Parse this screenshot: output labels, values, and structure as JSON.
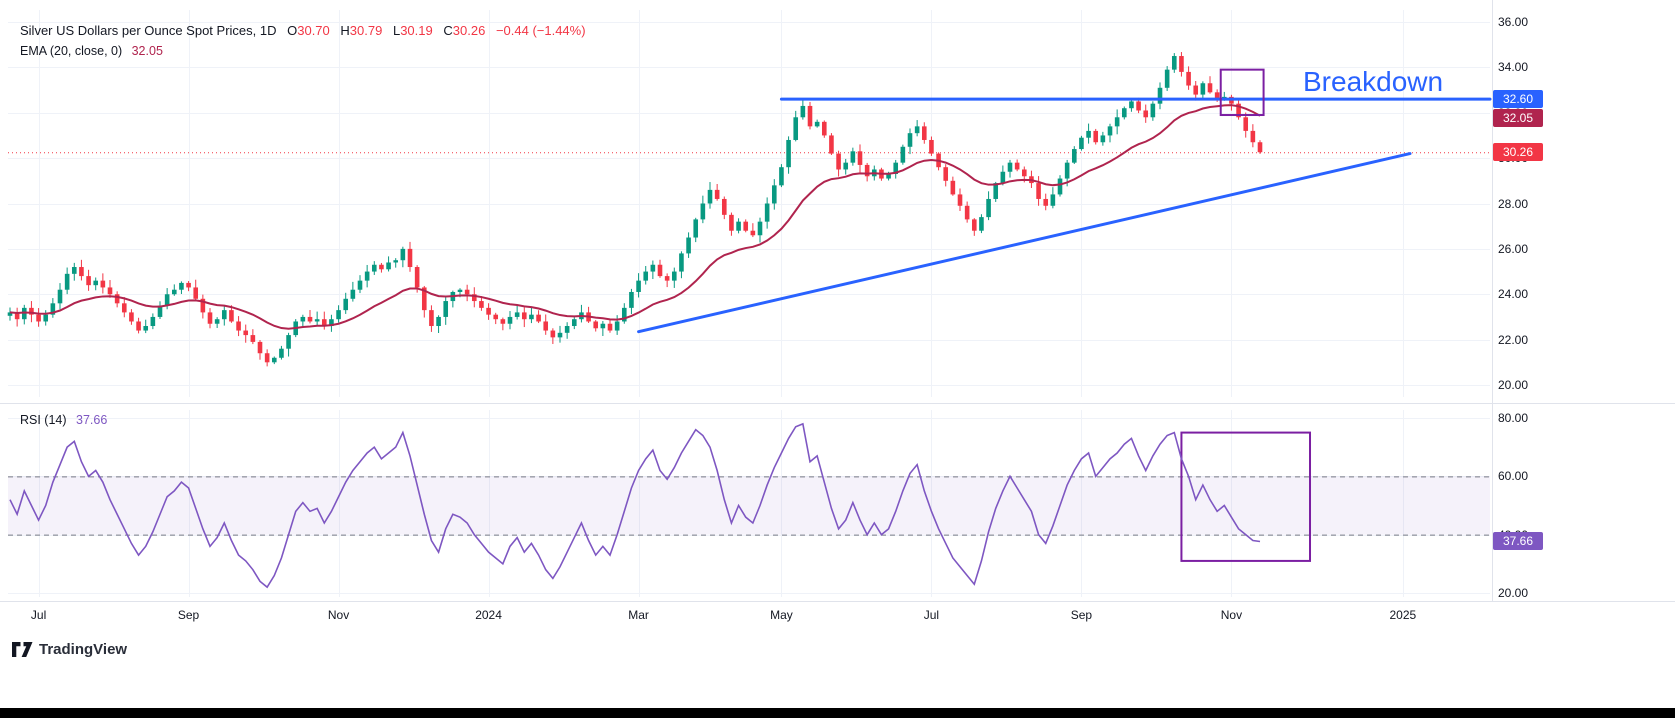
{
  "meta": {
    "watermark": "TradingView"
  },
  "legend": {
    "title": "Silver US Dollars per Ounce Spot Prices, 1D",
    "ohlc": [
      {
        "k": "O",
        "v": "30.70"
      },
      {
        "k": "H",
        "v": "30.79"
      },
      {
        "k": "L",
        "v": "30.19"
      },
      {
        "k": "C",
        "v": "30.26"
      }
    ],
    "change": "−0.44 (−1.44%)",
    "ema_label": "EMA (20, close, 0)",
    "ema_value": "32.05",
    "rsi_label": "RSI (14)",
    "rsi_value": "37.66"
  },
  "annotations": {
    "breakdown_text": "Breakdown",
    "resistance_tag": "32.60",
    "ema_tag": "32.05",
    "last_price_tag": "30.26",
    "rsi_tag": "37.66"
  },
  "colors": {
    "up": "#089981",
    "down": "#f23645",
    "ema": "#b0244e",
    "blue": "#2962ff",
    "rsi": "#7e57c2",
    "box": "#7b1fa2",
    "band_line": "#787b86",
    "band_fill": "rgba(126,87,194,0.08)",
    "grid": "#eff2f8",
    "separator": "#e0e3eb",
    "text": "#131722",
    "tag_resistance": "#2962ff",
    "tag_ema": "#b0244e",
    "tag_last": "#f23645",
    "tag_rsi": "#7e57c2"
  },
  "chart_data": [
    {
      "type": "candlestick",
      "title": "Silver US Dollars per Ounce Spot Prices, 1D",
      "ylim": [
        20,
        36
      ],
      "y_ticks": [
        "36.00",
        "34.00",
        "32.00",
        "30.00",
        "28.00",
        "26.00",
        "24.00",
        "22.00",
        "20.00"
      ],
      "x_ticks": [
        {
          "label": "Jul",
          "i": 4
        },
        {
          "label": "Sep",
          "i": 25
        },
        {
          "label": "Nov",
          "i": 46
        },
        {
          "label": "2024",
          "i": 67
        },
        {
          "label": "Mar",
          "i": 88
        },
        {
          "label": "May",
          "i": 108
        },
        {
          "label": "Jul",
          "i": 129
        },
        {
          "label": "Sep",
          "i": 150
        },
        {
          "label": "Nov",
          "i": 171
        },
        {
          "label": "2025",
          "i": 195
        }
      ],
      "close": [
        23.2,
        22.9,
        23.4,
        23.1,
        22.8,
        23.1,
        23.6,
        24.2,
        24.9,
        25.2,
        24.8,
        24.4,
        24.6,
        24.3,
        24.0,
        23.6,
        23.2,
        22.8,
        22.4,
        22.6,
        23.0,
        23.5,
        24.0,
        24.2,
        24.5,
        24.3,
        23.8,
        23.2,
        22.7,
        22.9,
        23.3,
        22.8,
        22.4,
        22.2,
        21.9,
        21.4,
        21.0,
        21.2,
        21.6,
        22.2,
        22.8,
        23.0,
        22.8,
        22.9,
        22.6,
        22.9,
        23.3,
        23.8,
        24.2,
        24.6,
        25.0,
        25.3,
        25.1,
        25.4,
        25.5,
        26.0,
        25.2,
        24.3,
        23.3,
        22.6,
        23.0,
        23.7,
        24.1,
        24.2,
        24.0,
        23.7,
        23.4,
        23.1,
        22.9,
        22.7,
        23.0,
        23.2,
        22.9,
        23.1,
        22.8,
        22.4,
        22.1,
        22.3,
        22.6,
        22.9,
        23.2,
        22.8,
        22.5,
        22.7,
        22.4,
        22.8,
        23.4,
        24.1,
        24.6,
        25.0,
        25.3,
        24.8,
        24.6,
        25.0,
        25.8,
        26.5,
        27.3,
        28.0,
        28.6,
        28.2,
        27.5,
        26.8,
        27.2,
        26.8,
        26.6,
        27.2,
        28.0,
        28.8,
        29.6,
        30.8,
        31.8,
        32.3,
        31.4,
        31.6,
        31.0,
        30.2,
        29.5,
        29.8,
        30.3,
        29.7,
        29.2,
        29.5,
        29.1,
        29.3,
        29.8,
        30.5,
        31.1,
        31.4,
        30.8,
        30.2,
        29.6,
        29.0,
        28.4,
        27.9,
        27.3,
        26.8,
        27.4,
        28.2,
        28.9,
        29.4,
        29.8,
        29.5,
        29.2,
        28.9,
        28.2,
        27.9,
        28.4,
        29.1,
        29.8,
        30.4,
        30.9,
        31.2,
        30.7,
        31.0,
        31.4,
        31.8,
        32.2,
        32.5,
        32.1,
        31.8,
        32.4,
        33.1,
        33.9,
        34.5,
        33.8,
        33.2,
        32.8,
        33.3,
        32.9,
        32.6,
        32.7,
        32.4,
        31.8,
        31.2,
        30.7,
        30.26
      ],
      "last": {
        "open": 30.7,
        "high": 30.79,
        "low": 30.19,
        "close": 30.26
      },
      "ema": {
        "period": 20,
        "last": 32.05
      },
      "overlays": {
        "resistance_line": {
          "price": 32.6,
          "from_i": 108
        },
        "trendline": {
          "from_i": 88,
          "from_price": 22.35,
          "to_i": 196,
          "to_price": 30.2
        },
        "last_price_line": 30.26,
        "highlight_box": {
          "from_i": 169.5,
          "to_i": 175.5,
          "top_price": 33.9,
          "bottom_price": 31.9
        }
      }
    },
    {
      "type": "line",
      "name": "RSI (14)",
      "ylim": [
        20,
        80
      ],
      "y_ticks": [
        "80.00",
        "60.00",
        "40.00",
        "20.00"
      ],
      "values": [
        52,
        47,
        55,
        50,
        45,
        50,
        58,
        64,
        70,
        72,
        65,
        60,
        62,
        58,
        52,
        47,
        42,
        37,
        33,
        36,
        41,
        47,
        53,
        55,
        58,
        56,
        49,
        42,
        36,
        39,
        44,
        38,
        33,
        31,
        28,
        24,
        22,
        26,
        32,
        40,
        48,
        51,
        48,
        49,
        44,
        48,
        53,
        58,
        62,
        65,
        68,
        70,
        66,
        68,
        70,
        75,
        67,
        57,
        47,
        38,
        34,
        42,
        47,
        46,
        44,
        40,
        37,
        34,
        32,
        30,
        36,
        39,
        34,
        37,
        33,
        28,
        25,
        29,
        34,
        39,
        44,
        38,
        33,
        36,
        33,
        40,
        48,
        56,
        62,
        66,
        69,
        62,
        59,
        63,
        68,
        72,
        76,
        74,
        70,
        62,
        52,
        44,
        50,
        46,
        44,
        50,
        57,
        63,
        68,
        73,
        77,
        78,
        65,
        67,
        58,
        49,
        42,
        45,
        51,
        45,
        40,
        44,
        40,
        42,
        48,
        55,
        61,
        64,
        55,
        48,
        42,
        37,
        32,
        29,
        26,
        23,
        31,
        41,
        49,
        55,
        60,
        56,
        52,
        48,
        40,
        37,
        43,
        50,
        57,
        62,
        66,
        68,
        60,
        63,
        66,
        68,
        71,
        73,
        67,
        62,
        67,
        71,
        74,
        75,
        66,
        60,
        52,
        57,
        52,
        48,
        50,
        46,
        42,
        40,
        38,
        37.66
      ],
      "last": 37.66,
      "bands": {
        "upper": 60,
        "lower": 40
      },
      "highlight_box": {
        "from_i": 164,
        "to_i": 182,
        "top": 75,
        "bottom": 31
      }
    }
  ]
}
